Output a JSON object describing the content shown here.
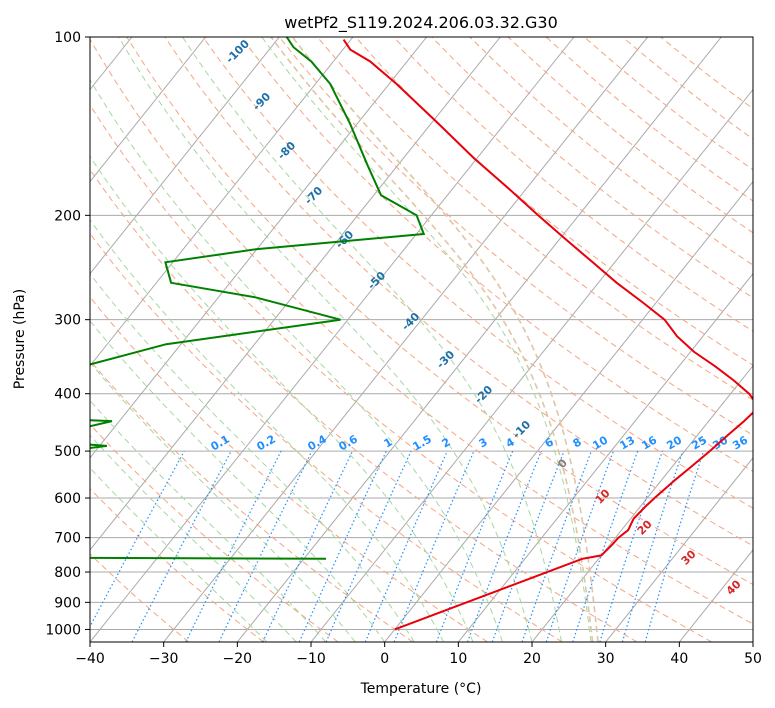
{
  "chart_data": {
    "type": "line",
    "title": "wetPf2_S119.2024.206.03.32.G30",
    "xlabel": "Temperature (°C)",
    "ylabel": "Pressure (hPa)",
    "xlim": [
      -40,
      50
    ],
    "ylim": [
      1050,
      100
    ],
    "y_scale": "log",
    "skew": "skew-T log-P",
    "grid": true,
    "x_ticks": [
      "−40",
      "−30",
      "−20",
      "−10",
      "0",
      "10",
      "20",
      "30",
      "40",
      "50"
    ],
    "y_ticks": [
      "100",
      "200",
      "300",
      "400",
      "500",
      "600",
      "700",
      "800",
      "900",
      "1000"
    ],
    "series": [
      {
        "role": "temperature",
        "color": "#e8000b",
        "points": [
          [
            1000,
            0
          ],
          [
            760,
            17.8
          ],
          [
            750,
            20.0
          ],
          [
            720,
            20.3
          ],
          [
            700,
            20.4
          ],
          [
            680,
            20.9
          ],
          [
            650,
            20.4
          ],
          [
            620,
            20.7
          ],
          [
            600,
            21.0
          ],
          [
            560,
            21.8
          ],
          [
            530,
            22.6
          ],
          [
            500,
            23.4
          ],
          [
            470,
            24.1
          ],
          [
            445,
            24.8
          ],
          [
            430,
            25.1
          ],
          [
            415,
            24.5
          ],
          [
            400,
            22.5
          ],
          [
            380,
            19.0
          ],
          [
            360,
            15.0
          ],
          [
            340,
            10.5
          ],
          [
            320,
            6.5
          ],
          [
            300,
            3.0
          ],
          [
            280,
            -2.0
          ],
          [
            260,
            -7.5
          ],
          [
            240,
            -13.0
          ],
          [
            220,
            -19.0
          ],
          [
            200,
            -25.5
          ],
          [
            180,
            -32.5
          ],
          [
            160,
            -40.5
          ],
          [
            140,
            -49.0
          ],
          [
            120,
            -59.0
          ],
          [
            110,
            -65.0
          ],
          [
            105,
            -69.0
          ],
          [
            101,
            -71.0
          ]
        ]
      },
      {
        "role": "dewpoint",
        "color": "#008000",
        "points": [
          [
            760,
            -17.0
          ],
          [
            755,
            -73.0
          ],
          [
            740,
            -77.0
          ],
          [
            730,
            -85.0
          ],
          [
            720,
            -63.0
          ],
          [
            700,
            -63.0
          ],
          [
            670,
            -77.0
          ],
          [
            640,
            -68.0
          ],
          [
            620,
            -60.0
          ],
          [
            600,
            -75.0
          ],
          [
            580,
            -70.0
          ],
          [
            560,
            -63.0
          ],
          [
            540,
            -71.0
          ],
          [
            520,
            -84.0
          ],
          [
            500,
            -64.0
          ],
          [
            490,
            -59.0
          ],
          [
            475,
            -74.0
          ],
          [
            460,
            -65.0
          ],
          [
            445,
            -61.0
          ],
          [
            430,
            -93.0
          ],
          [
            410,
            -99.0
          ],
          [
            395,
            -98.0
          ],
          [
            370,
            -94.0
          ],
          [
            360,
            -71.0
          ],
          [
            330,
            -62.0
          ],
          [
            300,
            -41.0
          ],
          [
            275,
            -55.0
          ],
          [
            260,
            -68.0
          ],
          [
            240,
            -71.0
          ],
          [
            228,
            -60.0
          ],
          [
            215,
            -39.0
          ],
          [
            200,
            -42.0
          ],
          [
            185,
            -49.0
          ],
          [
            165,
            -54.0
          ],
          [
            140,
            -61.0
          ],
          [
            120,
            -68.0
          ],
          [
            110,
            -73.0
          ],
          [
            104,
            -77.0
          ],
          [
            100,
            -79.0
          ]
        ]
      }
    ],
    "mixing_ratio_labels": [
      "0.1",
      "0.2",
      "0.4",
      "0.6",
      "1",
      "1.5",
      "2",
      "3",
      "4",
      "6",
      "8",
      "10",
      "13",
      "16",
      "20",
      "25",
      "30",
      "36"
    ],
    "dry_adiabat_labels": [
      "-100",
      "-90",
      "-80",
      "-70",
      "-60",
      "-50",
      "-40",
      "-30",
      "-20",
      "-10",
      "0",
      "10",
      "20",
      "30",
      "40"
    ],
    "colors": {
      "isotherm": "#aaaaaa",
      "dry_adiabat": "#f4a582",
      "moist_adiabat": "#a6d8a0",
      "mixing_ratio": "#1f8fff",
      "cold_label": "#1f6fa8",
      "zero_label": "#808080",
      "warm_label": "#d62728",
      "outer_moist": "#e0c4a4"
    }
  }
}
